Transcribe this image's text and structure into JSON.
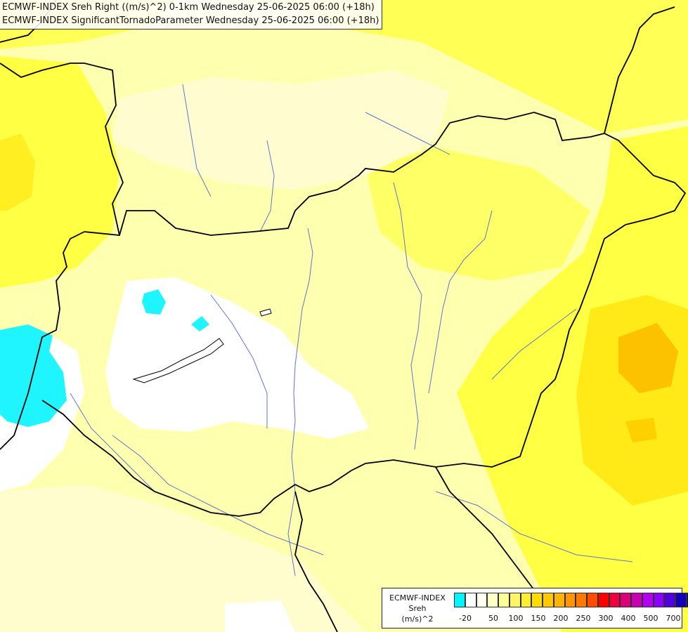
{
  "title": {
    "line1": "ECMWF-INDEX Sreh Right ((m/s)^2) 0-1km Wednesday 25-06-2025 06:00 (+18h)",
    "line2": "ECMWF-INDEX SignificantTornadoParameter Wednesday 25-06-2025 06:00 (+18h)"
  },
  "legend": {
    "model": "ECMWF-INDEX",
    "variable": "Sreh",
    "unit": "(m/s)^2",
    "colors": [
      "#00f6ff",
      "#ffffff",
      "#fffff2",
      "#ffffc8",
      "#ffff99",
      "#fff566",
      "#ffec33",
      "#ffdc00",
      "#ffc800",
      "#ffb400",
      "#ff9600",
      "#ff7800",
      "#ff4b00",
      "#ff0000",
      "#f0003c",
      "#dc0078",
      "#c800b4",
      "#b400f0",
      "#8c00ff",
      "#5000dc",
      "#1400b4",
      "#000078"
    ],
    "ticks": [
      "-20",
      "50",
      "100",
      "150",
      "200",
      "250",
      "300",
      "400",
      "500",
      "700"
    ]
  },
  "field_colors": {
    "cyan": "#1ff5ff",
    "white": "#ffffff",
    "pale": "#fffccd",
    "light": "#ffffad",
    "mid": "#ffff66",
    "strong": "#ffee22",
    "orange": "#fde000",
    "deep": "#fcc200",
    "border": "#000000",
    "river": "#5a78c8"
  }
}
